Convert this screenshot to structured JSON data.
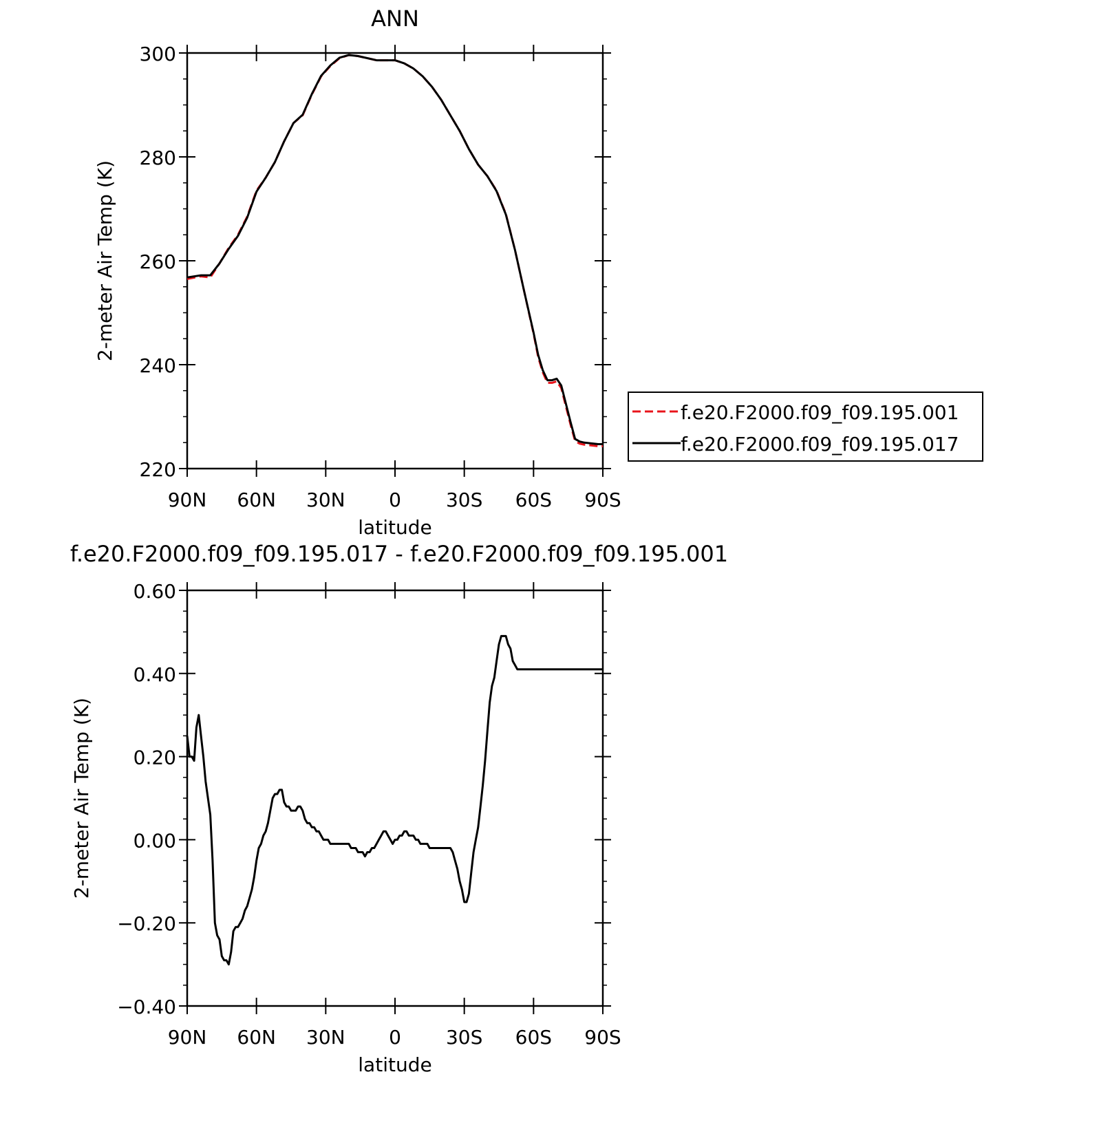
{
  "chart_data": [
    {
      "type": "line",
      "title": "ANN",
      "xlabel": "latitude",
      "ylabel": "2-meter Air Temp (K)",
      "ylim": [
        220,
        300
      ],
      "xlim": [
        90,
        -90
      ],
      "xticks": [
        {
          "value": 90,
          "label": "90N"
        },
        {
          "value": 60,
          "label": "60N"
        },
        {
          "value": 30,
          "label": "30N"
        },
        {
          "value": 0,
          "label": "0"
        },
        {
          "value": -30,
          "label": "30S"
        },
        {
          "value": -60,
          "label": "60S"
        },
        {
          "value": -90,
          "label": "90S"
        }
      ],
      "yticks": [
        {
          "value": 300,
          "label": "300"
        },
        {
          "value": 280,
          "label": "280"
        },
        {
          "value": 260,
          "label": "260"
        },
        {
          "value": 240,
          "label": "240"
        },
        {
          "value": 220,
          "label": "220"
        }
      ],
      "legend_position": "right",
      "x": [
        90,
        84,
        80,
        76,
        72,
        68,
        64,
        60,
        56,
        52,
        48,
        44,
        40,
        36,
        32,
        28,
        24,
        20,
        16,
        12,
        8,
        4,
        0,
        -4,
        -8,
        -12,
        -16,
        -20,
        -24,
        -28,
        -32,
        -36,
        -40,
        -44,
        -48,
        -52,
        -56,
        -60,
        -62,
        -64,
        -66,
        -68,
        -70,
        -72,
        -74,
        -76,
        -78,
        -80,
        -82,
        -84,
        -86,
        -88,
        -90
      ],
      "series": [
        {
          "name": "f.e20.F2000.f09_f09.195.001",
          "color": "#e8141b",
          "style": "dashed",
          "values": [
            256.5,
            257.0,
            256.8,
            259.5,
            262.5,
            265.0,
            268.5,
            273.5,
            276.0,
            279.0,
            283.0,
            286.5,
            288.0,
            292.0,
            295.5,
            297.5,
            299.0,
            299.6,
            299.4,
            299.0,
            298.6,
            298.6,
            298.6,
            298.0,
            297.0,
            295.5,
            293.5,
            291.0,
            288.0,
            285.0,
            281.5,
            278.5,
            276.3,
            273.5,
            269.0,
            262.0,
            254.0,
            246.0,
            241.5,
            238.5,
            236.5,
            236.5,
            236.8,
            235.5,
            232.0,
            228.5,
            225.3,
            224.8,
            224.6,
            224.5,
            224.4,
            224.3,
            224.3
          ]
        },
        {
          "name": "f.e20.F2000.f09_f09.195.017",
          "color": "#000000",
          "style": "solid",
          "values": [
            256.8,
            257.2,
            257.2,
            259.5,
            262.3,
            264.8,
            268.3,
            273.3,
            276.0,
            279.0,
            283.0,
            286.5,
            288.1,
            292.1,
            295.6,
            297.6,
            299.1,
            299.6,
            299.4,
            299.0,
            298.6,
            298.6,
            298.6,
            298.0,
            297.0,
            295.5,
            293.5,
            291.0,
            288.0,
            285.0,
            281.5,
            278.5,
            276.3,
            273.4,
            268.9,
            262.0,
            254.0,
            246.2,
            241.9,
            238.9,
            237.0,
            237.0,
            237.3,
            236.0,
            232.5,
            229.0,
            225.7,
            225.2,
            225.0,
            224.9,
            224.8,
            224.7,
            224.7
          ]
        }
      ]
    },
    {
      "type": "line",
      "title": "f.e20.F2000.f09_f09.195.017 - f.e20.F2000.f09_f09.195.001",
      "xlabel": "latitude",
      "ylabel": "2-meter Air Temp (K)",
      "ylim": [
        -0.4,
        0.6
      ],
      "xlim": [
        90,
        -90
      ],
      "xticks": [
        {
          "value": 90,
          "label": "90N"
        },
        {
          "value": 60,
          "label": "60N"
        },
        {
          "value": 30,
          "label": "30N"
        },
        {
          "value": 0,
          "label": "0"
        },
        {
          "value": -30,
          "label": "30S"
        },
        {
          "value": -60,
          "label": "60S"
        },
        {
          "value": -90,
          "label": "90S"
        }
      ],
      "yticks": [
        {
          "value": 0.6,
          "label": "0.60"
        },
        {
          "value": 0.4,
          "label": "0.40"
        },
        {
          "value": 0.2,
          "label": "0.20"
        },
        {
          "value": 0.0,
          "label": "0.00"
        },
        {
          "value": -0.2,
          "label": "−0.20"
        },
        {
          "value": -0.4,
          "label": "−0.40"
        }
      ],
      "x": [
        90,
        89,
        88,
        87,
        86,
        85,
        84,
        83,
        82,
        81,
        80,
        79,
        78,
        77,
        76,
        75,
        74,
        73,
        72,
        71,
        70,
        69,
        68,
        67,
        66,
        65,
        64,
        63,
        62,
        61,
        60,
        59,
        58,
        57,
        56,
        55,
        54,
        53,
        52,
        51,
        50,
        49,
        48,
        47,
        46,
        45,
        44,
        43,
        42,
        41,
        40,
        39,
        38,
        37,
        36,
        35,
        34,
        33,
        32,
        31,
        30,
        29,
        28,
        27,
        26,
        25,
        24,
        23,
        22,
        21,
        20,
        19,
        18,
        17,
        16,
        15,
        14,
        13,
        12,
        11,
        10,
        9,
        8,
        7,
        6,
        5,
        4,
        3,
        2,
        1,
        0,
        -1,
        -2,
        -3,
        -4,
        -5,
        -6,
        -7,
        -8,
        -9,
        -10,
        -11,
        -12,
        -13,
        -14,
        -15,
        -16,
        -17,
        -18,
        -19,
        -20,
        -21,
        -22,
        -23,
        -24,
        -25,
        -26,
        -27,
        -28,
        -29,
        -30,
        -31,
        -32,
        -33,
        -34,
        -35,
        -36,
        -37,
        -38,
        -39,
        -40,
        -41,
        -42,
        -43,
        -44,
        -45,
        -46,
        -47,
        -48,
        -49,
        -50,
        -51,
        -52,
        -53,
        -54,
        -55,
        -56,
        -57,
        -58,
        -59,
        -60,
        -61,
        -62,
        -63,
        -64,
        -65,
        -66,
        -67,
        -68,
        -69,
        -70,
        -71,
        -72,
        -73,
        -74,
        -75,
        -76,
        -77,
        -78,
        -79,
        -80,
        -81,
        -82,
        -83,
        -84,
        -85,
        -86,
        -87,
        -88,
        -89,
        -90
      ],
      "series": [
        {
          "color": "#000000",
          "style": "solid",
          "values": [
            0.25,
            0.2,
            0.2,
            0.19,
            0.27,
            0.3,
            0.25,
            0.2,
            0.14,
            0.1,
            0.06,
            -0.05,
            -0.2,
            -0.23,
            -0.24,
            -0.28,
            -0.29,
            -0.29,
            -0.3,
            -0.27,
            -0.22,
            -0.21,
            -0.21,
            -0.2,
            -0.19,
            -0.17,
            -0.16,
            -0.14,
            -0.12,
            -0.09,
            -0.05,
            -0.02,
            -0.01,
            0.01,
            0.02,
            0.04,
            0.07,
            0.1,
            0.11,
            0.11,
            0.12,
            0.12,
            0.09,
            0.08,
            0.08,
            0.07,
            0.07,
            0.07,
            0.08,
            0.08,
            0.07,
            0.05,
            0.04,
            0.04,
            0.03,
            0.03,
            0.02,
            0.02,
            0.01,
            0.0,
            0.0,
            0.0,
            -0.01,
            -0.01,
            -0.01,
            -0.01,
            -0.01,
            -0.01,
            -0.01,
            -0.01,
            -0.01,
            -0.02,
            -0.02,
            -0.02,
            -0.03,
            -0.03,
            -0.03,
            -0.04,
            -0.03,
            -0.03,
            -0.02,
            -0.02,
            -0.01,
            0.0,
            0.01,
            0.02,
            0.02,
            0.01,
            0.0,
            -0.01,
            0.0,
            0.0,
            0.01,
            0.01,
            0.02,
            0.02,
            0.01,
            0.01,
            0.01,
            0.0,
            0.0,
            -0.01,
            -0.01,
            -0.01,
            -0.01,
            -0.02,
            -0.02,
            -0.02,
            -0.02,
            -0.02,
            -0.02,
            -0.02,
            -0.02,
            -0.02,
            -0.02,
            -0.03,
            -0.05,
            -0.07,
            -0.1,
            -0.12,
            -0.15,
            -0.15,
            -0.13,
            -0.08,
            -0.03,
            0.0,
            0.03,
            0.08,
            0.13,
            0.19,
            0.26,
            0.33,
            0.37,
            0.39,
            0.43,
            0.47,
            0.49,
            0.49,
            0.49,
            0.47,
            0.46,
            0.43,
            0.42,
            0.41,
            0.41,
            0.41,
            0.41,
            0.41,
            0.41,
            0.41,
            0.41,
            0.41,
            0.41,
            0.41,
            0.41,
            0.41,
            0.41,
            0.41,
            0.41,
            0.41,
            0.41,
            0.41,
            0.41,
            0.41,
            0.41,
            0.41,
            0.41,
            0.41,
            0.41,
            0.41,
            0.41,
            0.41,
            0.41,
            0.41,
            0.41,
            0.41,
            0.41,
            0.41,
            0.41,
            0.41,
            0.41
          ]
        }
      ]
    }
  ]
}
